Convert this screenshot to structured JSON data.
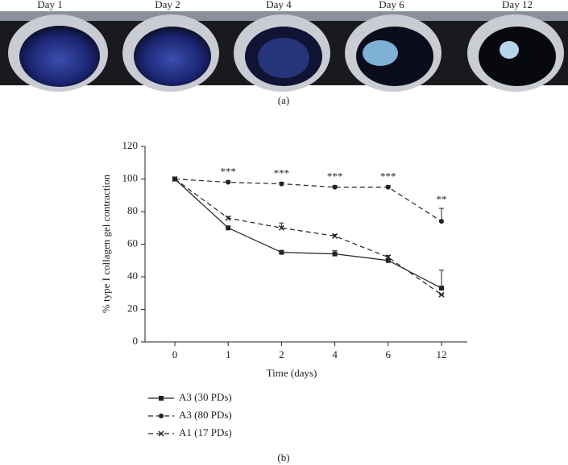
{
  "chart_data": {
    "type": "line",
    "photo_labels": [
      "Day 1",
      "Day 2",
      "Day 4",
      "Day 6",
      "Day 12"
    ],
    "panel_a": "(a)",
    "panel_b": "(b)",
    "xlabel": "Time (days)",
    "ylabel": "% type I collagen gel contraction",
    "categories": [
      "0",
      "1",
      "2",
      "4",
      "6",
      "12"
    ],
    "ylim": [
      0,
      120
    ],
    "yticks": [
      0,
      20,
      40,
      60,
      80,
      100,
      120
    ],
    "series": [
      {
        "name": "A3 (30 PDs)",
        "color": "#222222",
        "dash": "solid",
        "marker": "square",
        "values": [
          100,
          70,
          55,
          54,
          50,
          33
        ],
        "errors": [
          0,
          1,
          1,
          2,
          1,
          11
        ]
      },
      {
        "name": "A3 (80 PDs)",
        "color": "#222222",
        "dash": "dashed",
        "marker": "circle",
        "values": [
          100,
          98,
          97,
          95,
          95,
          74
        ],
        "errors": [
          0,
          1,
          1,
          1,
          1,
          8
        ]
      },
      {
        "name": "A1 (17 PDs)",
        "color": "#222222",
        "dash": "dashed",
        "marker": "x",
        "values": [
          100,
          76,
          70,
          65,
          52,
          29
        ],
        "errors": [
          0,
          1,
          3,
          1,
          1,
          0
        ]
      }
    ],
    "annotations": [
      {
        "text": "***",
        "category": "1"
      },
      {
        "text": "***",
        "category": "2"
      },
      {
        "text": "***",
        "category": "4"
      },
      {
        "text": "***",
        "category": "6"
      },
      {
        "text": "**",
        "category": "12"
      }
    ]
  }
}
